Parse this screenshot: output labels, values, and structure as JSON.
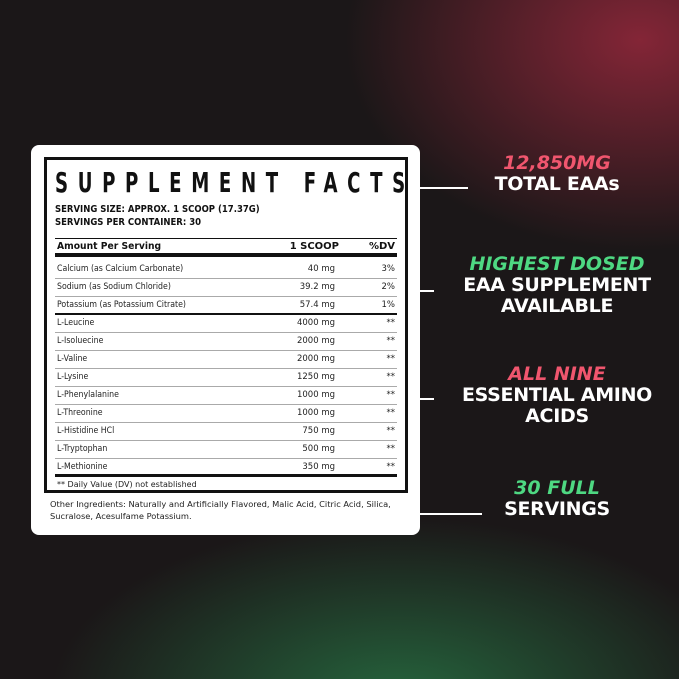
{
  "facts": {
    "title": "SUPPLEMENT FACTS",
    "serving_size": "SERVING SIZE: APPROX. 1 SCOOP (17.37G)",
    "servings_per_container": "SERVINGS PER CONTAINER: 30",
    "header": {
      "amount": "Amount Per Serving",
      "scoop": "1 SCOOP",
      "dv": "%DV"
    },
    "rows": [
      {
        "name": "Calcium (as Calcium Carbonate)",
        "amount": "40 mg",
        "dv": "3%"
      },
      {
        "name": "Sodium (as Sodium Chloride)",
        "amount": "39.2 mg",
        "dv": "2%"
      },
      {
        "name": "Potassium (as Potassium Citrate)",
        "amount": "57.4 mg",
        "dv": "1%"
      },
      {
        "name": "L-Leucine",
        "amount": "4000 mg",
        "dv": "**"
      },
      {
        "name": "L-Isoluecine",
        "amount": "2000 mg",
        "dv": "**"
      },
      {
        "name": "L-Valine",
        "amount": "2000 mg",
        "dv": "**"
      },
      {
        "name": "L-Lysine",
        "amount": "1250 mg",
        "dv": "**"
      },
      {
        "name": "L-Phenylalanine",
        "amount": "1000 mg",
        "dv": "**"
      },
      {
        "name": "L-Threonine",
        "amount": "1000 mg",
        "dv": "**"
      },
      {
        "name": "L-Histidine HCl",
        "amount": "750 mg",
        "dv": "**"
      },
      {
        "name": "L-Tryptophan",
        "amount": "500 mg",
        "dv": "**"
      },
      {
        "name": "L-Methionine",
        "amount": "350 mg",
        "dv": "**"
      }
    ],
    "footnote": "** Daily Value (DV) not established",
    "other_ingredients": "Other Ingredients: Naturally and Artificially Flavored, Malic Acid, Citric Acid, Silica, Sucralose, Acesulfame Potassium."
  },
  "callouts": [
    {
      "highlight": "12,850MG",
      "text": [
        "TOTAL EAAs"
      ],
      "color": "#f0566e"
    },
    {
      "highlight": "HIGHEST DOSED",
      "text": [
        "EAA SUPPLEMENT",
        "AVAILABLE"
      ],
      "color": "#4ed882"
    },
    {
      "highlight": "ALL NINE",
      "text": [
        "ESSENTIAL AMINO",
        "ACIDS"
      ],
      "color": "#f0566e"
    },
    {
      "highlight": "30 FULL",
      "text": [
        "SERVINGS"
      ],
      "color": "#4ed882"
    }
  ]
}
